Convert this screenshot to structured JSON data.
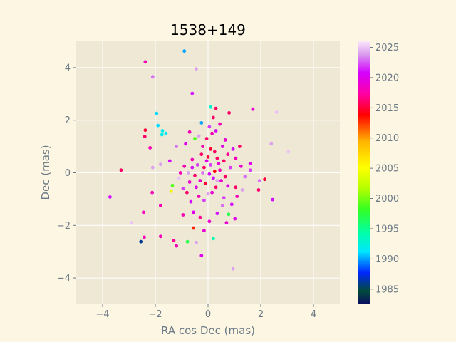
{
  "chart_data": {
    "type": "scatter",
    "title": "1538+149",
    "xlabel": "RA cos Dec (mas)",
    "ylabel": "Dec (mas)",
    "xlim": [
      -5,
      5
    ],
    "ylim": [
      -5,
      5
    ],
    "xticks": [
      -4,
      -2,
      0,
      2,
      4
    ],
    "yticks": [
      -4,
      -2,
      0,
      2,
      4
    ],
    "grid": true,
    "colorbar": {
      "label": "",
      "range": [
        1982.5,
        2026
      ],
      "ticks": [
        1985,
        1990,
        1995,
        2000,
        2005,
        2010,
        2015,
        2020,
        2025
      ],
      "colormap": "gist_ncar-like",
      "stops": [
        [
          "0.00",
          "#0c0c63"
        ],
        [
          "0.05",
          "#004b3a"
        ],
        [
          "0.12",
          "#0026ff"
        ],
        [
          "0.20",
          "#00e6ff"
        ],
        [
          "0.27",
          "#00ffaa"
        ],
        [
          "0.36",
          "#33ff22"
        ],
        [
          "0.44",
          "#b4ff00"
        ],
        [
          "0.52",
          "#ffff00"
        ],
        [
          "0.62",
          "#ffb300"
        ],
        [
          "0.72",
          "#ff0000"
        ],
        [
          "0.80",
          "#ff00a5"
        ],
        [
          "0.88",
          "#d400ff"
        ],
        [
          "0.95",
          "#d99bee"
        ],
        [
          "1.00",
          "#fbe7fb"
        ]
      ]
    },
    "series": [
      {
        "points": [
          [
            -2.38,
            4.22,
            2018
          ],
          [
            -2.1,
            3.65,
            2023
          ],
          [
            -0.9,
            4.63,
            1990
          ],
          [
            -0.45,
            3.95,
            2024
          ],
          [
            -0.6,
            3.02,
            2021
          ],
          [
            -1.95,
            2.26,
            1991
          ],
          [
            -1.9,
            1.8,
            1991
          ],
          [
            -2.38,
            1.62,
            2015
          ],
          [
            -2.4,
            1.38,
            2016
          ],
          [
            -1.73,
            1.6,
            1992
          ],
          [
            -1.6,
            1.5,
            1992
          ],
          [
            -1.75,
            1.45,
            1992
          ],
          [
            -2.2,
            0.95,
            2018
          ],
          [
            -0.5,
            1.3,
            1999
          ],
          [
            -0.7,
            1.55,
            2018
          ],
          [
            -0.25,
            1.9,
            1990
          ],
          [
            0.1,
            2.5,
            1993
          ],
          [
            0.3,
            2.45,
            2016
          ],
          [
            0.45,
            1.85,
            2018
          ],
          [
            0.8,
            2.28,
            2016
          ],
          [
            1.7,
            2.42,
            2019
          ],
          [
            2.6,
            2.3,
            2025
          ],
          [
            0.2,
            2.1,
            2016
          ],
          [
            0.65,
            1.25,
            2019
          ],
          [
            0.15,
            1.5,
            2018
          ],
          [
            -0.6,
            0.5,
            2018
          ],
          [
            -3.3,
            0.1,
            2016
          ],
          [
            -3.72,
            -0.92,
            2021
          ],
          [
            -2.12,
            -0.75,
            2018
          ],
          [
            -2.1,
            0.2,
            2024
          ],
          [
            -1.8,
            0.32,
            2024
          ],
          [
            -1.35,
            -0.48,
            1999
          ],
          [
            -1.4,
            -0.7,
            2006
          ],
          [
            -0.8,
            -0.75,
            2016
          ],
          [
            -1.8,
            -1.25,
            2018
          ],
          [
            -2.45,
            -1.5,
            2018
          ],
          [
            -2.9,
            -1.9,
            2025
          ],
          [
            -1.3,
            -2.58,
            2017
          ],
          [
            -1.2,
            -2.78,
            2018
          ],
          [
            -1.8,
            -2.42,
            2018
          ],
          [
            -2.42,
            -2.45,
            2018
          ],
          [
            -2.55,
            -2.62,
            1986
          ],
          [
            -0.78,
            -2.62,
            1997
          ],
          [
            -0.45,
            -2.65,
            2024
          ],
          [
            -0.55,
            -2.1,
            2013
          ],
          [
            -0.25,
            -3.15,
            2020
          ],
          [
            0.2,
            -2.5,
            1994
          ],
          [
            -0.15,
            -2.2,
            2019
          ],
          [
            0.05,
            -1.85,
            2019
          ],
          [
            0.7,
            -1.9,
            2019
          ],
          [
            0.78,
            -1.58,
            1997
          ],
          [
            1.02,
            -1.75,
            2020
          ],
          [
            0.95,
            -3.65,
            2024
          ],
          [
            1.92,
            -0.65,
            2016
          ],
          [
            2.15,
            -0.25,
            2015
          ],
          [
            2.45,
            -1.02,
            2021
          ],
          [
            1.95,
            -0.3,
            2023
          ],
          [
            2.4,
            1.1,
            2024
          ],
          [
            3.05,
            0.8,
            2025
          ],
          [
            1.6,
            0.35,
            2020
          ],
          [
            1.6,
            0.1,
            2022
          ],
          [
            1.2,
            1.0,
            2016
          ],
          [
            1.05,
            0.55,
            2018
          ],
          [
            0.95,
            0.9,
            2021
          ],
          [
            0.35,
            0.55,
            2016
          ],
          [
            0.25,
            0.8,
            2016
          ],
          [
            0.45,
            0.1,
            2018
          ],
          [
            0.5,
            -0.3,
            2019
          ],
          [
            0.75,
            -0.5,
            2020
          ],
          [
            1.05,
            -0.55,
            2016
          ],
          [
            1.1,
            -0.9,
            2018
          ],
          [
            0.6,
            -0.95,
            2022
          ],
          [
            -0.15,
            0.2,
            2016
          ],
          [
            -0.05,
            0.45,
            2020
          ],
          [
            0.1,
            0.3,
            2022
          ],
          [
            -0.25,
            0.7,
            2016
          ],
          [
            0.2,
            -0.2,
            2021
          ],
          [
            -0.3,
            -0.3,
            2019
          ],
          [
            -0.5,
            -0.1,
            2016
          ],
          [
            -0.6,
            0.2,
            2021
          ],
          [
            -0.75,
            0.0,
            2024
          ],
          [
            -0.9,
            0.25,
            2018
          ],
          [
            -1.05,
            0.0,
            2018
          ],
          [
            -1.1,
            -0.2,
            2025
          ],
          [
            -0.45,
            -0.55,
            2020
          ],
          [
            -0.35,
            -0.9,
            2018
          ],
          [
            -0.15,
            -1.05,
            2022
          ],
          [
            0.15,
            -0.75,
            2019
          ],
          [
            0.3,
            -0.55,
            2016
          ],
          [
            0.05,
            -0.05,
            2021
          ],
          [
            0.4,
            0.35,
            2019
          ],
          [
            0.6,
            0.45,
            2016
          ],
          [
            0.75,
            0.7,
            2017
          ],
          [
            0.85,
            0.2,
            2022
          ],
          [
            1.25,
            0.25,
            2019
          ],
          [
            1.4,
            -0.15,
            2023
          ],
          [
            -0.2,
            1.0,
            2018
          ],
          [
            -0.05,
            1.3,
            2016
          ],
          [
            -0.35,
            1.4,
            2024
          ],
          [
            0.05,
            1.75,
            2022
          ],
          [
            0.3,
            1.6,
            2021
          ],
          [
            0.55,
            1.0,
            2020
          ],
          [
            -0.85,
            1.1,
            2020
          ],
          [
            -1.2,
            1.0,
            2023
          ],
          [
            -1.45,
            0.45,
            2021
          ],
          [
            -0.95,
            -0.6,
            2022
          ],
          [
            -0.65,
            -1.1,
            2021
          ],
          [
            -0.95,
            -1.6,
            2018
          ],
          [
            -0.55,
            -1.5,
            2020
          ],
          [
            -0.3,
            -1.7,
            2017
          ],
          [
            0.35,
            -1.55,
            2021
          ],
          [
            0.55,
            -1.25,
            2023
          ],
          [
            0.9,
            -1.2,
            2021
          ],
          [
            1.3,
            -0.65,
            2024
          ],
          [
            0.0,
            0.6,
            2015
          ],
          [
            0.1,
            0.9,
            2015
          ],
          [
            -0.1,
            -0.4,
            2015
          ],
          [
            0.25,
            0.05,
            2014
          ],
          [
            -0.2,
            0.0,
            2023
          ],
          [
            0.35,
            -0.3,
            2024
          ],
          [
            -0.4,
            0.3,
            2022
          ],
          [
            0.0,
            -0.8,
            2024
          ],
          [
            0.65,
            -0.15,
            2016
          ],
          [
            -0.7,
            -0.35,
            2019
          ]
        ]
      }
    ]
  }
}
